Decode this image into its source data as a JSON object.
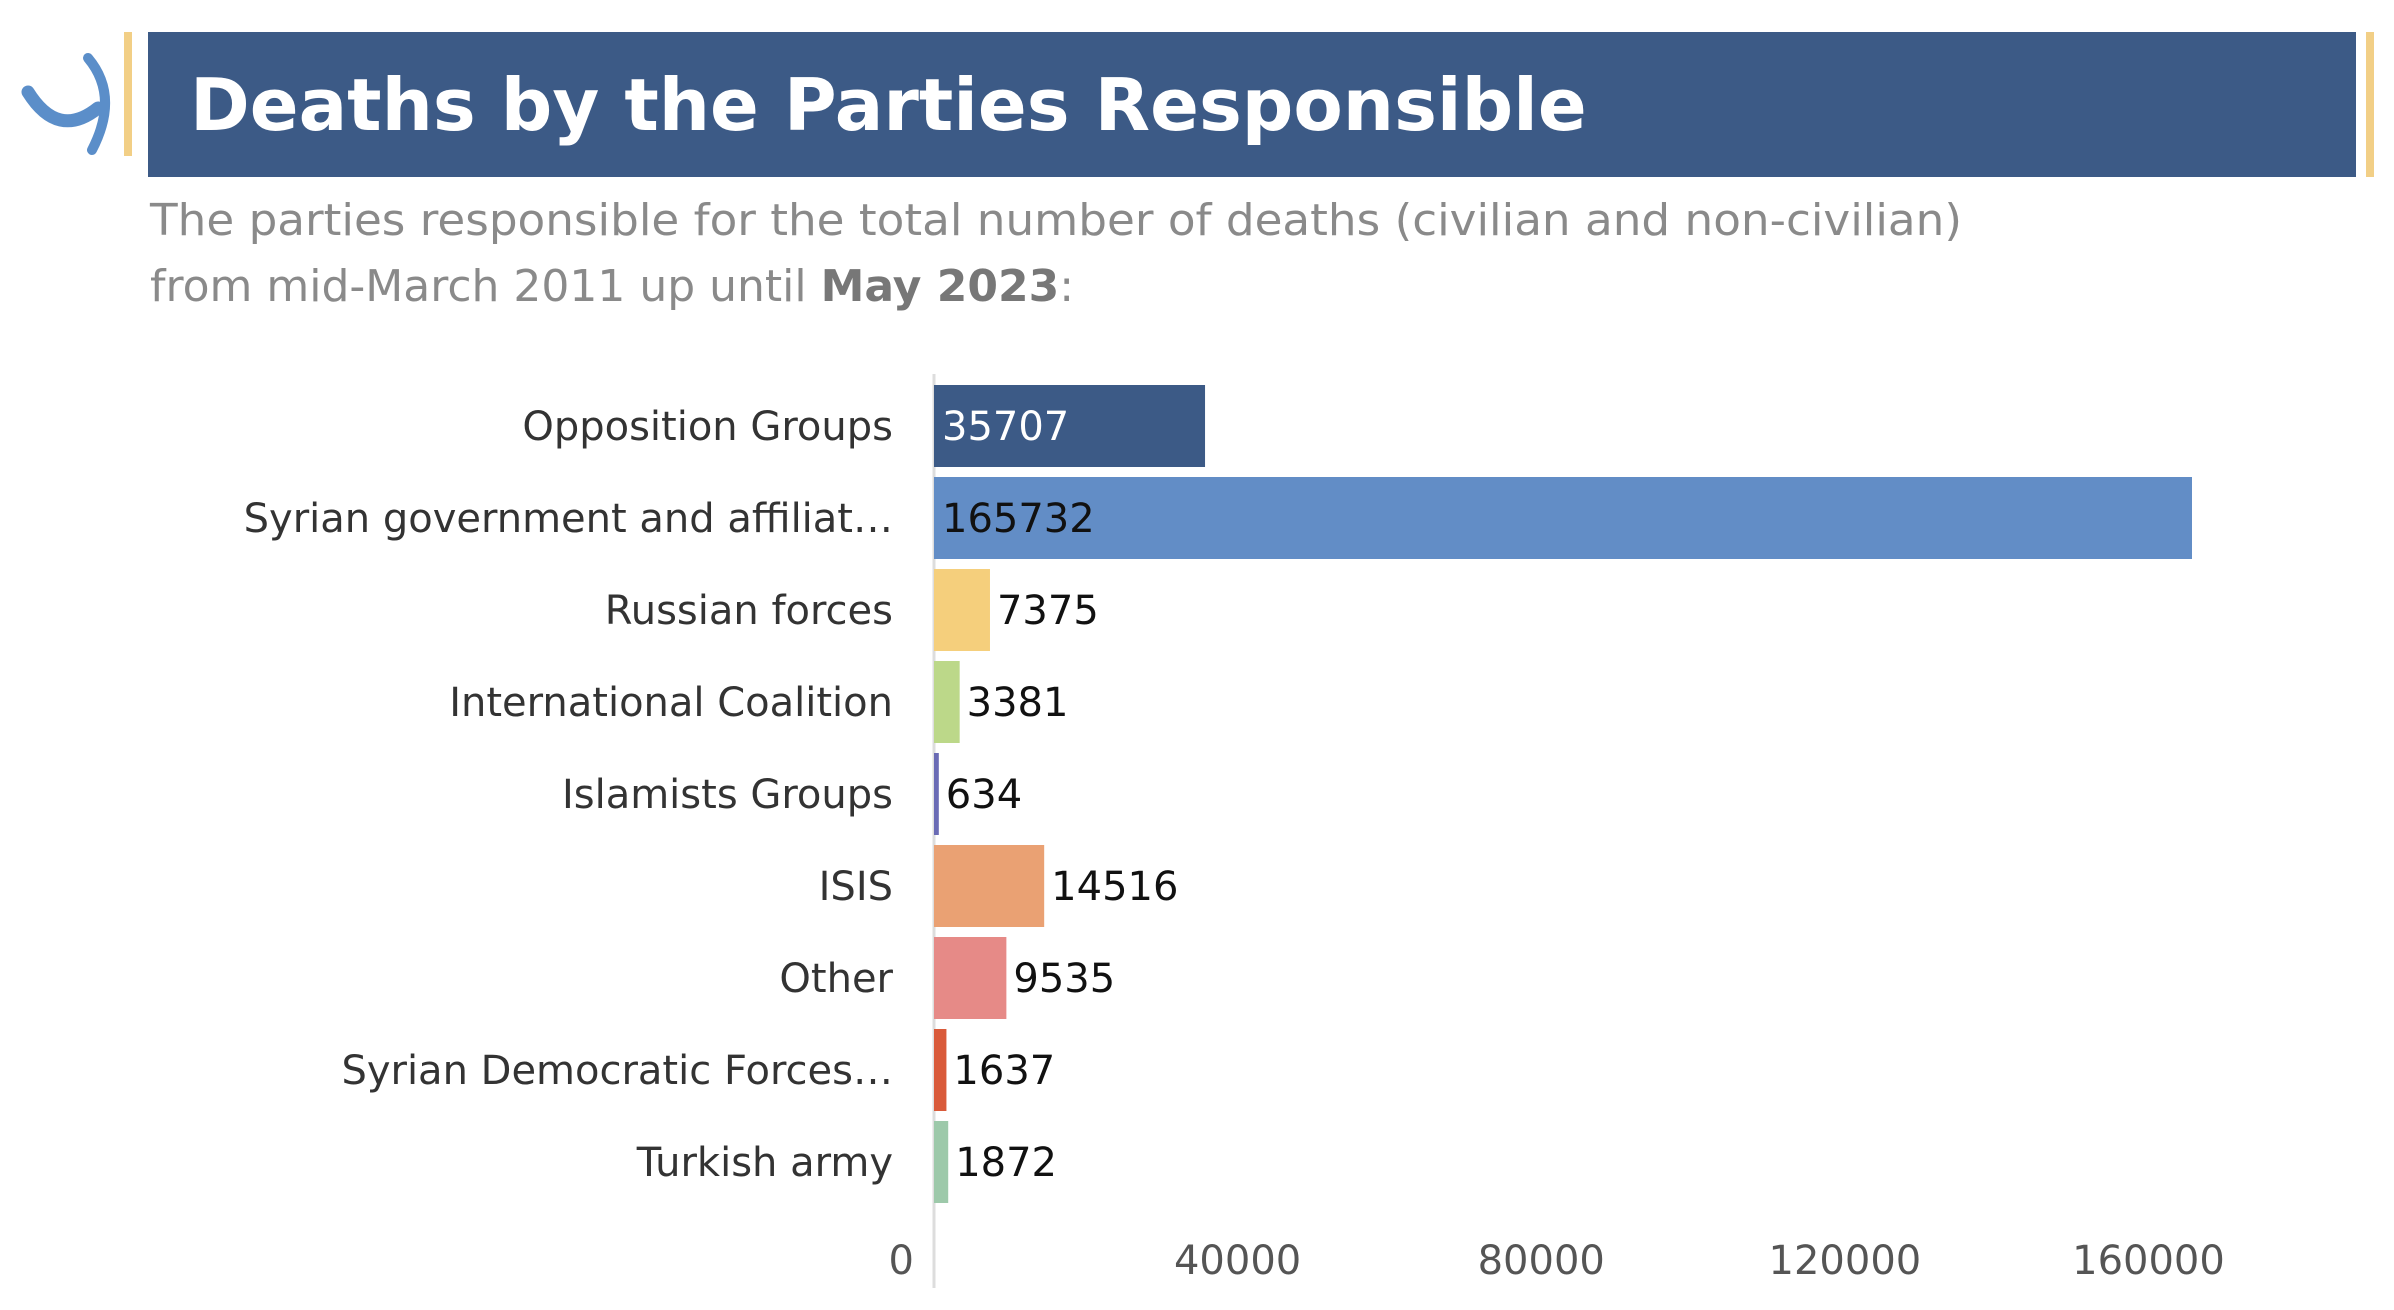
{
  "header": {
    "title": "Deaths by the Parties Responsible",
    "subtitle_line1": "The parties responsible for the total number of deaths (civilian and non-civilian)",
    "subtitle_line2_prefix": "from mid-March 2011 up until ",
    "subtitle_line2_strong": "May 2023",
    "subtitle_line2_suffix": ":"
  },
  "colors": {
    "header_bg": "#3c5a86",
    "accent_gold": "#f2cf86",
    "logo_blue": "#5b8ec9"
  },
  "chart_data": {
    "type": "bar",
    "orientation": "horizontal",
    "title": "",
    "xlabel": "",
    "ylabel": "",
    "xlim": [
      0,
      180000
    ],
    "xticks": [
      0,
      40000,
      80000,
      120000,
      160000
    ],
    "grid": false,
    "legend": "none",
    "categories": [
      "Opposition Groups",
      "Syrian government and affiliat…",
      "Russian forces",
      "International Coalition",
      "Islamists Groups",
      "ISIS",
      "Other",
      "Syrian Democratic Forces…",
      "Turkish army"
    ],
    "values": [
      35707,
      165732,
      7375,
      3381,
      634,
      14516,
      9535,
      1637,
      1872
    ],
    "bar_colors": [
      "#3c5a86",
      "#628dc6",
      "#f5cf7c",
      "#bcd889",
      "#6a6bb5",
      "#eaa173",
      "#e68a87",
      "#d95a3a",
      "#9dc9aa"
    ],
    "label_colors": [
      "#ffffff",
      "#111111",
      "#111111",
      "#111111",
      "#111111",
      "#111111",
      "#111111",
      "#111111",
      "#111111"
    ]
  }
}
